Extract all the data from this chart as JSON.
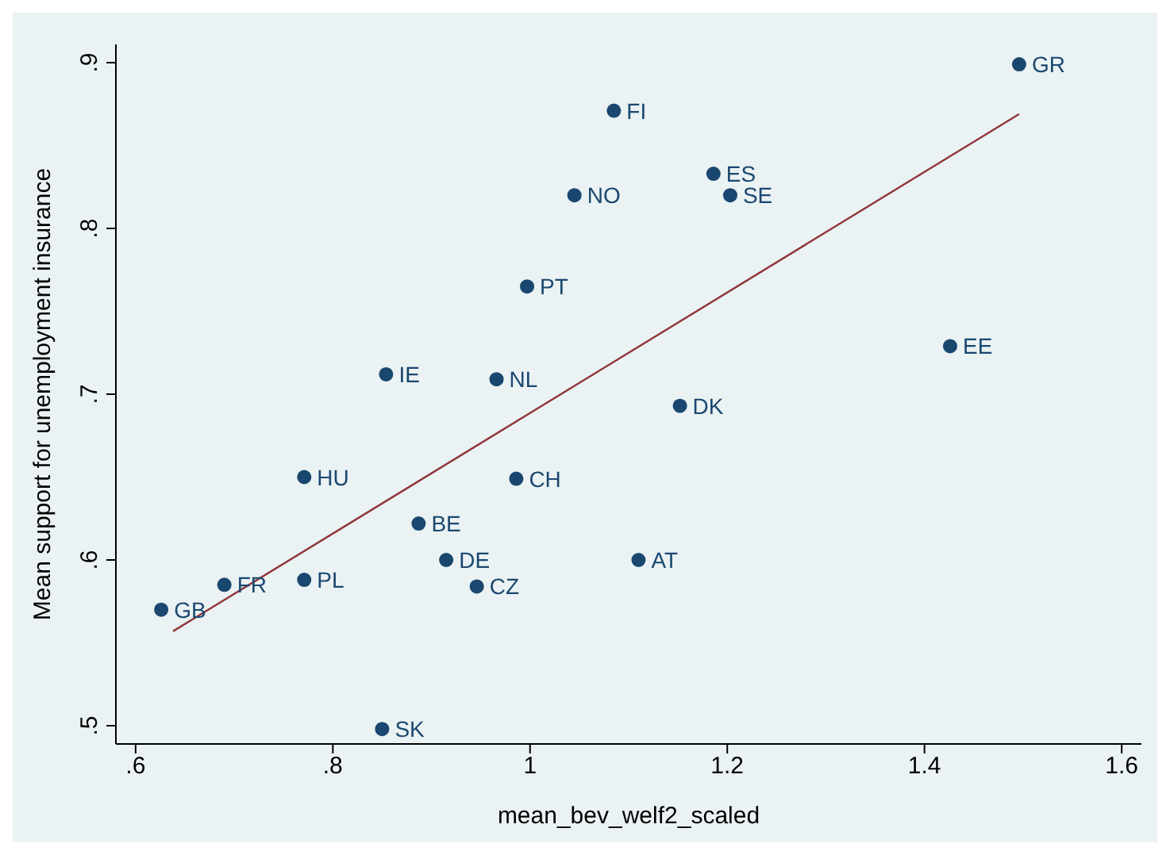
{
  "chart_data": {
    "type": "scatter",
    "xlabel": "mean_bev_welf2_scaled",
    "ylabel": "Mean support for unemployment insurance",
    "xlim": [
      0.58,
      1.62
    ],
    "ylim": [
      0.489,
      0.911
    ],
    "xticks": [
      {
        "value": 0.6,
        "label": ".6"
      },
      {
        "value": 0.8,
        "label": ".8"
      },
      1,
      1.2,
      1.4,
      1.6
    ],
    "yticks": [
      {
        "value": 0.5,
        "label": ".5"
      },
      {
        "value": 0.6,
        "label": ".6"
      },
      {
        "value": 0.7,
        "label": ".7"
      },
      {
        "value": 0.8,
        "label": ".8"
      },
      {
        "value": 0.9,
        "label": ".9"
      }
    ],
    "grid": false,
    "series": [
      {
        "marker": "circle",
        "color": "#1a476f",
        "x": [
          1.496,
          1.085,
          1.186,
          1.045,
          1.203,
          0.997,
          1.426,
          0.854,
          0.966,
          1.152,
          0.771,
          0.986,
          0.887,
          0.915,
          1.11,
          0.771,
          0.946,
          0.69,
          0.626,
          0.85
        ],
        "values": [
          0.899,
          0.871,
          0.833,
          0.82,
          0.82,
          0.765,
          0.729,
          0.712,
          0.709,
          0.693,
          0.65,
          0.649,
          0.622,
          0.6,
          0.6,
          0.588,
          0.584,
          0.585,
          0.57,
          0.498
        ]
      },
      {
        "type": "line",
        "marker": "none",
        "color": "#90353b",
        "x": [
          0.638,
          1.496
        ],
        "values": [
          0.557,
          0.869
        ]
      }
    ],
    "annotations": [
      {
        "text": "GR",
        "x": 1.496,
        "y": 0.899
      },
      {
        "text": "FI",
        "x": 1.085,
        "y": 0.871
      },
      {
        "text": "ES",
        "x": 1.186,
        "y": 0.833
      },
      {
        "text": "NO",
        "x": 1.045,
        "y": 0.82
      },
      {
        "text": "SE",
        "x": 1.203,
        "y": 0.82
      },
      {
        "text": "PT",
        "x": 0.997,
        "y": 0.765
      },
      {
        "text": "EE",
        "x": 1.426,
        "y": 0.729
      },
      {
        "text": "IE",
        "x": 0.854,
        "y": 0.712
      },
      {
        "text": "NL",
        "x": 0.966,
        "y": 0.709
      },
      {
        "text": "DK",
        "x": 1.152,
        "y": 0.693
      },
      {
        "text": "HU",
        "x": 0.771,
        "y": 0.65
      },
      {
        "text": "CH",
        "x": 0.986,
        "y": 0.649
      },
      {
        "text": "BE",
        "x": 0.887,
        "y": 0.622
      },
      {
        "text": "DE",
        "x": 0.915,
        "y": 0.6
      },
      {
        "text": "AT",
        "x": 1.11,
        "y": 0.6
      },
      {
        "text": "PL",
        "x": 0.771,
        "y": 0.588
      },
      {
        "text": "CZ",
        "x": 0.946,
        "y": 0.584
      },
      {
        "text": "FR",
        "x": 0.69,
        "y": 0.585
      },
      {
        "text": "GB",
        "x": 0.626,
        "y": 0.57
      },
      {
        "text": "SK",
        "x": 0.85,
        "y": 0.498
      }
    ]
  }
}
